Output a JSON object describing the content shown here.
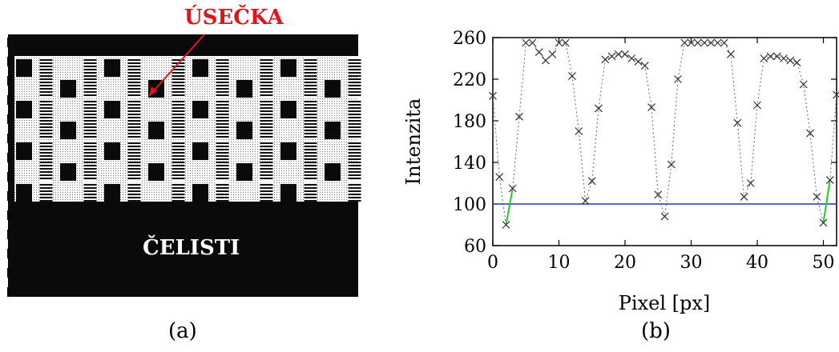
{
  "panel_a": {
    "caption": "(a)",
    "label_line": "ÚSEČKA",
    "label_jaws": "ČELISTI",
    "colors": {
      "label_line": "#e8101a",
      "label_jaws": "#ffffff",
      "image_bg": "#0a0a0a"
    }
  },
  "panel_b": {
    "caption": "(b)"
  },
  "chart_data": {
    "type": "scatter",
    "title": "",
    "xlabel": "Pixel [px]",
    "ylabel": "Intenzita",
    "xlim": [
      0,
      52
    ],
    "ylim": [
      60,
      260
    ],
    "xticks": [
      0,
      10,
      20,
      30,
      40,
      50
    ],
    "yticks": [
      60,
      100,
      140,
      180,
      220,
      260
    ],
    "grid": false,
    "marker": "x",
    "connect_dotted": true,
    "colors": {
      "points": "#333333",
      "dotted": "#666666",
      "threshold": "#2233cc",
      "segments": "#22cc22"
    },
    "series": [
      {
        "x": [
          0,
          1,
          2,
          3,
          4,
          5,
          6,
          7,
          8,
          9,
          10,
          11,
          12,
          13,
          14,
          15,
          16,
          17,
          18,
          19,
          20,
          21,
          22,
          23,
          24,
          25,
          26,
          27,
          28,
          29,
          30,
          31,
          32,
          33,
          34,
          35,
          36,
          37,
          38,
          39,
          40,
          41,
          42,
          43,
          44,
          45,
          46,
          47,
          48,
          49,
          50,
          51,
          52
        ],
        "y": [
          204,
          126,
          80,
          115,
          184,
          255,
          255,
          246,
          238,
          244,
          255,
          255,
          223,
          170,
          103,
          122,
          192,
          239,
          242,
          244,
          244,
          240,
          237,
          233,
          193,
          109,
          88,
          138,
          220,
          255,
          255,
          255,
          255,
          255,
          255,
          255,
          244,
          178,
          107,
          120,
          195,
          240,
          242,
          242,
          240,
          238,
          236,
          215,
          168,
          107,
          82,
          123,
          205
        ]
      }
    ],
    "threshold_line": {
      "y": 100
    },
    "highlight_segments": [
      {
        "x": [
          2,
          3
        ],
        "y": [
          80,
          115
        ]
      },
      {
        "x": [
          50,
          51
        ],
        "y": [
          82,
          123
        ]
      }
    ]
  }
}
